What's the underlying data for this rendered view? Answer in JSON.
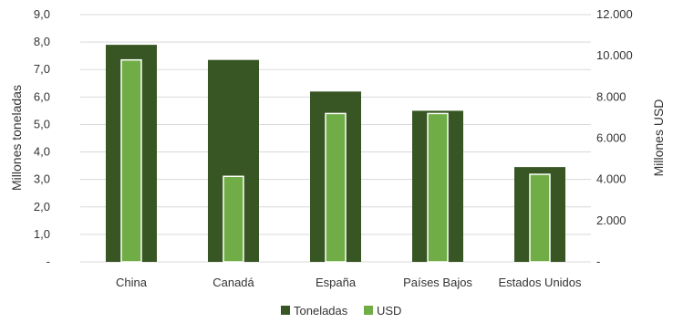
{
  "chart_data": {
    "type": "bar",
    "title": "",
    "categories": [
      "China",
      "Canadá",
      "España",
      "Países Bajos",
      "Estados Unidos"
    ],
    "series": [
      {
        "name": "Toneladas",
        "axis": "left",
        "values": [
          7.9,
          7.35,
          6.2,
          5.5,
          3.45
        ],
        "color": "#375623"
      },
      {
        "name": "USD",
        "axis": "right",
        "values": [
          9800,
          4150,
          7200,
          7200,
          4250
        ],
        "color": "#70ad47"
      }
    ],
    "ylabel": "Millones toneladas",
    "ylabel_right": "Millones USD",
    "ylim": [
      0,
      9
    ],
    "ylim_right": [
      0,
      12000
    ],
    "yticks": [
      "-",
      "1,0",
      "2,0",
      "3,0",
      "4,0",
      "5,0",
      "6,0",
      "7,0",
      "8,0",
      "9,0"
    ],
    "yticks_right": [
      "-",
      "2.000",
      "4.000",
      "6.000",
      "8.000",
      "10.000",
      "12.000"
    ],
    "grid": true,
    "legend_position": "bottom-center"
  }
}
